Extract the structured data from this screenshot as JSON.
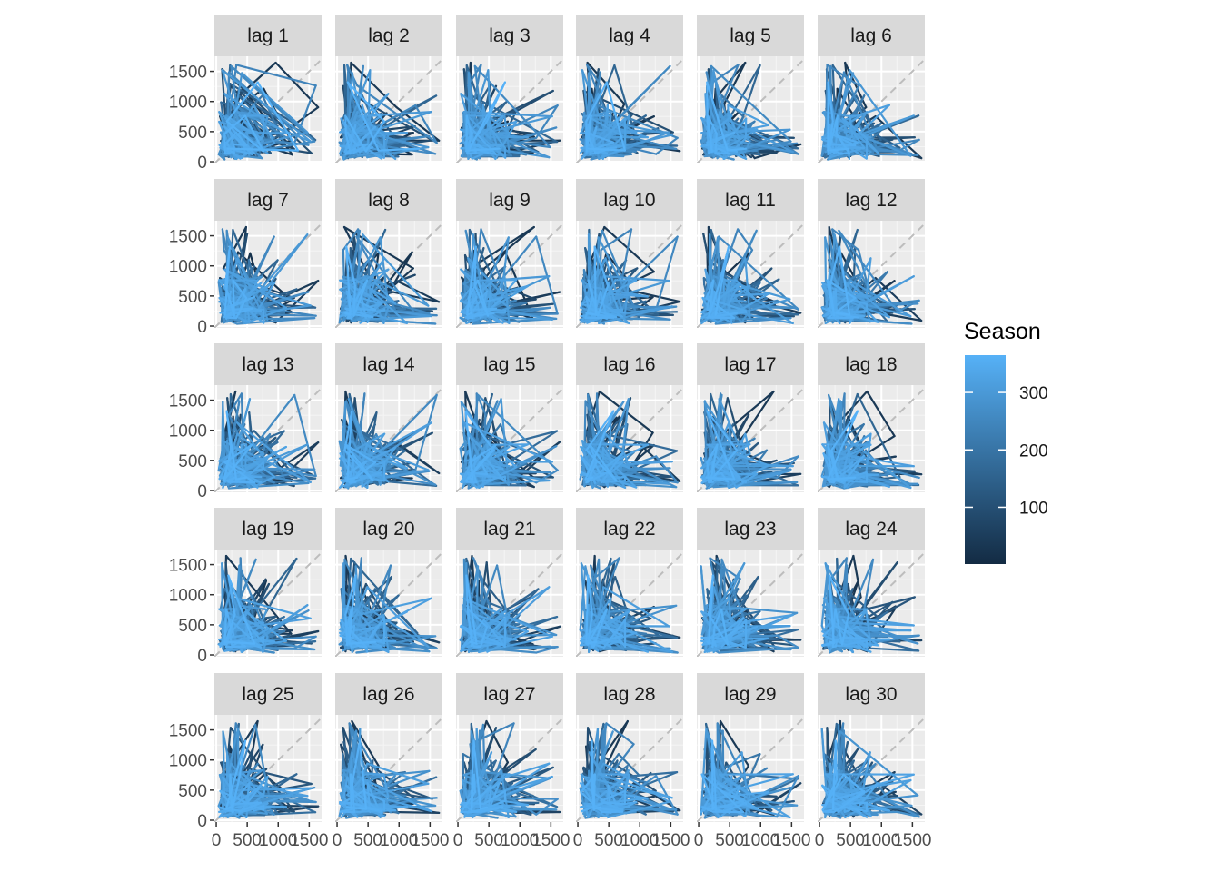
{
  "chart_data": {
    "type": "lag-plot",
    "title": "",
    "xlabel": "",
    "ylabel": "",
    "facets": [
      "lag 1",
      "lag 2",
      "lag 3",
      "lag 4",
      "lag 5",
      "lag 6",
      "lag 7",
      "lag 8",
      "lag 9",
      "lag 10",
      "lag 11",
      "lag 12",
      "lag 13",
      "lag 14",
      "lag 15",
      "lag 16",
      "lag 17",
      "lag 18",
      "lag 19",
      "lag 20",
      "lag 21",
      "lag 22",
      "lag 23",
      "lag 24",
      "lag 25",
      "lag 26",
      "lag 27",
      "lag 28",
      "lag 29",
      "lag 30"
    ],
    "facet_grid": {
      "rows": 5,
      "cols": 6
    },
    "xlim": [
      -30,
      1700
    ],
    "ylim": [
      -30,
      1750
    ],
    "x_ticks": [
      0,
      500,
      1000,
      1500
    ],
    "x_tick_labels": [
      "0",
      "500",
      "1000",
      "1500"
    ],
    "y_ticks": [
      0,
      500,
      1000,
      1500
    ],
    "y_tick_labels": [
      "0",
      "500",
      "1000",
      "1500"
    ],
    "reference_line": "y = x (dashed)",
    "grid": true,
    "series_length": 365,
    "legend": {
      "title": "Season",
      "position": "right",
      "type": "colorbar",
      "range": [
        1,
        365
      ],
      "ticks": [
        100,
        200,
        300
      ],
      "tick_labels": [
        "100",
        "200",
        "300"
      ],
      "color_low": "#132B43",
      "color_high": "#56B1F7"
    },
    "colors": {
      "panel_background": "#ebebeb",
      "grid_major": "#ffffff",
      "strip_background": "#d9d9d9",
      "reference_line": "#bdbdbd"
    }
  }
}
